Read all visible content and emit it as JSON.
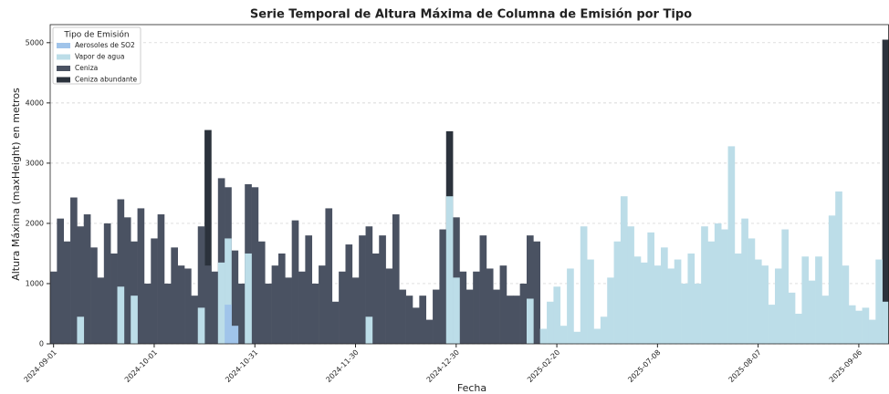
{
  "chart_data": {
    "type": "bar",
    "title": "Serie Temporal de Altura Máxima de Columna de Emisión por Tipo",
    "xlabel": "Fecha",
    "ylabel": "Altura Máxima (maxHeight) en metros",
    "legend_title": "Tipo de Emisión",
    "legend": "upper left",
    "grid": true,
    "ylim": [
      0,
      5300
    ],
    "yticks": [
      0,
      1000,
      2000,
      3000,
      4000,
      5000
    ],
    "categories": [
      "2024-09-01",
      null,
      null,
      null,
      null,
      null,
      null,
      null,
      null,
      null,
      null,
      null,
      null,
      null,
      null,
      "2024-10-01",
      null,
      null,
      null,
      null,
      null,
      null,
      null,
      null,
      null,
      null,
      null,
      null,
      null,
      null,
      "2024-10-31",
      null,
      null,
      null,
      null,
      null,
      null,
      null,
      null,
      null,
      null,
      null,
      null,
      null,
      null,
      "2024-11-30",
      null,
      null,
      null,
      null,
      null,
      null,
      null,
      null,
      null,
      null,
      null,
      null,
      null,
      null,
      "2024-12-30",
      null,
      null,
      null,
      null,
      null,
      null,
      null,
      null,
      null,
      null,
      null,
      null,
      null,
      null,
      "2025-02-20",
      null,
      null,
      null,
      null,
      null,
      null,
      null,
      null,
      null,
      null,
      null,
      null,
      null,
      null,
      "2025-07-08",
      null,
      null,
      null,
      null,
      null,
      null,
      null,
      null,
      null,
      null,
      null,
      null,
      null,
      null,
      "2025-08-07",
      null,
      null,
      null,
      null,
      null,
      null,
      null,
      null,
      null,
      null,
      null,
      null,
      null,
      null,
      "2025-09-06",
      null,
      null,
      null,
      null
    ],
    "series": [
      {
        "name": "Aerosoles de SO2",
        "color": "#a0c4ea",
        "values": [
          null,
          null,
          null,
          null,
          null,
          null,
          null,
          null,
          null,
          null,
          null,
          null,
          null,
          null,
          null,
          null,
          null,
          null,
          null,
          null,
          null,
          null,
          null,
          null,
          null,
          null,
          650,
          300,
          null,
          null,
          null,
          null,
          null,
          null,
          null,
          null,
          null,
          null,
          null,
          null,
          null,
          null,
          null,
          null,
          null,
          null,
          null,
          null,
          null,
          null,
          null,
          null,
          null,
          null,
          null,
          null,
          null,
          null,
          null,
          null,
          null,
          null,
          null,
          null,
          null,
          null,
          null,
          null,
          null,
          null,
          null,
          null,
          null,
          null,
          null,
          null,
          null,
          null,
          null,
          null,
          null,
          null,
          null,
          null,
          null,
          null,
          null,
          null,
          null,
          null,
          null,
          null,
          null,
          null,
          null,
          null,
          null,
          null,
          null,
          null,
          null,
          null,
          null,
          null,
          null,
          null,
          null,
          null,
          null,
          null,
          null,
          null,
          null,
          null,
          null,
          null,
          null,
          null,
          null,
          null,
          null,
          null,
          null,
          null,
          null
        ]
      },
      {
        "name": "Vapor de agua",
        "color": "#bcdde8",
        "values": [
          null,
          null,
          null,
          null,
          450,
          null,
          null,
          null,
          null,
          null,
          950,
          null,
          800,
          null,
          null,
          null,
          null,
          null,
          null,
          null,
          null,
          null,
          600,
          null,
          null,
          1350,
          1750,
          null,
          null,
          1500,
          null,
          null,
          null,
          null,
          null,
          null,
          null,
          null,
          null,
          null,
          null,
          null,
          null,
          null,
          null,
          null,
          null,
          450,
          null,
          null,
          null,
          null,
          null,
          null,
          null,
          null,
          null,
          null,
          null,
          2450,
          1100,
          null,
          null,
          null,
          null,
          null,
          null,
          null,
          null,
          null,
          null,
          750,
          null,
          250,
          700,
          950,
          300,
          1250,
          200,
          1950,
          1400,
          250,
          450,
          1100,
          1700,
          2450,
          1950,
          1450,
          1350,
          1850,
          1300,
          1600,
          1250,
          1400,
          1000,
          1500,
          1000,
          1950,
          1700,
          2000,
          1900,
          3280,
          1500,
          2080,
          1750,
          1400,
          1300,
          650,
          1250,
          1900,
          850,
          500,
          1450,
          1050,
          1450,
          800,
          2130,
          2530,
          1300,
          640,
          550,
          600,
          400,
          1400,
          700
        ]
      },
      {
        "name": "Ceniza",
        "color": "#4a5262",
        "values": [
          1200,
          2080,
          1700,
          2430,
          1950,
          2150,
          1600,
          1100,
          2000,
          1500,
          2400,
          2100,
          1700,
          2250,
          1000,
          1750,
          2150,
          1000,
          1600,
          1300,
          1250,
          800,
          1950,
          1300,
          1200,
          2750,
          2600,
          1550,
          1000,
          2650,
          2600,
          1700,
          1000,
          1300,
          1500,
          1100,
          2050,
          1200,
          1800,
          1000,
          1300,
          2250,
          700,
          1200,
          1650,
          1100,
          1800,
          1950,
          1500,
          1800,
          1250,
          2150,
          900,
          800,
          600,
          800,
          400,
          900,
          1900,
          1200,
          2100,
          1200,
          900,
          1200,
          1800,
          1250,
          900,
          1300,
          800,
          800,
          1000,
          1800,
          1700,
          null,
          null,
          null,
          null,
          null,
          null,
          null,
          null,
          null,
          null,
          null,
          null,
          null,
          null,
          null,
          null,
          null,
          null,
          null,
          null,
          null,
          null,
          null,
          null,
          null,
          null,
          null,
          null,
          null,
          null,
          null,
          null,
          null,
          null,
          null,
          null,
          null,
          null,
          null,
          null,
          null,
          null,
          null,
          null,
          null,
          null,
          null,
          null,
          null,
          null,
          null,
          null
        ]
      },
      {
        "name": "Ceniza abundante",
        "color": "#2b323c",
        "values": [
          null,
          null,
          null,
          null,
          null,
          null,
          null,
          null,
          null,
          null,
          null,
          null,
          null,
          null,
          null,
          null,
          null,
          null,
          null,
          null,
          null,
          null,
          null,
          3550,
          null,
          null,
          null,
          null,
          null,
          null,
          null,
          null,
          null,
          null,
          null,
          null,
          null,
          null,
          null,
          null,
          null,
          null,
          null,
          null,
          null,
          null,
          null,
          null,
          null,
          null,
          null,
          null,
          null,
          null,
          null,
          null,
          null,
          null,
          null,
          3530,
          null,
          null,
          null,
          null,
          null,
          null,
          null,
          null,
          null,
          null,
          null,
          null,
          null,
          null,
          null,
          null,
          null,
          null,
          null,
          null,
          null,
          null,
          null,
          null,
          null,
          null,
          null,
          null,
          null,
          null,
          null,
          null,
          null,
          null,
          null,
          null,
          null,
          null,
          null,
          null,
          null,
          null,
          null,
          null,
          null,
          null,
          null,
          null,
          null,
          null,
          null,
          null,
          null,
          null,
          null,
          null,
          null,
          null,
          null,
          null,
          null,
          null,
          null,
          null,
          5050
        ]
      }
    ]
  }
}
